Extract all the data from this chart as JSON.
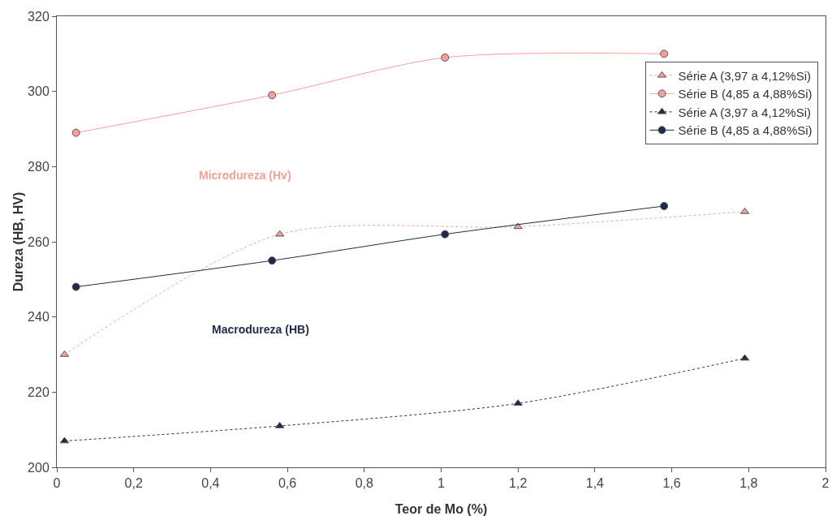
{
  "chart_data": {
    "type": "line",
    "xlabel": "Teor de Mo (%)",
    "ylabel": "Dureza (HB, HV)",
    "xlim": [
      0,
      2
    ],
    "xticks": [
      0,
      {
        "value": 0.2,
        "label": "0,2"
      },
      {
        "value": 0.4,
        "label": "0,4"
      },
      {
        "value": 0.6,
        "label": "0,6"
      },
      {
        "value": 0.8,
        "label": "0,8"
      },
      1,
      {
        "value": 1.2,
        "label": "1,2"
      },
      {
        "value": 1.4,
        "label": "1,4"
      },
      {
        "value": 1.6,
        "label": "1,6"
      },
      {
        "value": 1.8,
        "label": "1,8"
      },
      2
    ],
    "ylim": [
      200,
      320
    ],
    "yticks": [
      200,
      220,
      240,
      260,
      280,
      300,
      320
    ],
    "grid": false,
    "legend": "top right",
    "annotations": [
      "Microdureza (Hv)",
      "Macrodureza (HB)"
    ],
    "series": [
      {
        "name": "Série A (3,97 a 4,12%Si)",
        "color": "#f4a09a",
        "marker": "triangle",
        "line_style": "dotted",
        "x": [
          0.02,
          0.58,
          1.2,
          1.79
        ],
        "values": [
          230,
          262,
          264,
          268
        ]
      },
      {
        "name": "Série B (4,85 a 4,88%Si)",
        "color": "#f4a09a",
        "marker": "circle",
        "line_style": "solid",
        "x": [
          0.05,
          0.56,
          1.01,
          1.58
        ],
        "values": [
          289,
          299,
          309,
          310
        ]
      },
      {
        "name": "Série A (3,97 a 4,12%Si)",
        "color": "#1f2a4a",
        "marker": "triangle",
        "line_style": "dotted",
        "x": [
          0.02,
          0.58,
          1.2,
          1.79
        ],
        "values": [
          207,
          211,
          217,
          229
        ]
      },
      {
        "name": "Série B (4,85 a 4,88%Si)",
        "color": "#1f2a4a",
        "marker": "circle",
        "line_style": "solid",
        "x": [
          0.05,
          0.56,
          1.01,
          1.58
        ],
        "values": [
          248,
          255,
          262,
          269.5
        ]
      }
    ]
  }
}
